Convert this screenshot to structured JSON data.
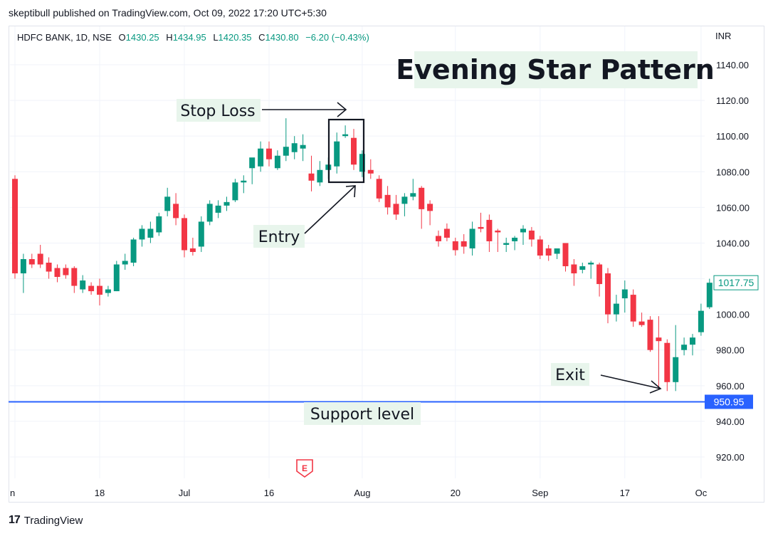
{
  "publisher_line": "skeptibull published on TradingView.com, Oct 09, 2022 17:20 UTC+5:30",
  "legend": {
    "symbol": "HDFC BANK, 1D, NSE",
    "open_label": "O",
    "open": "1430.25",
    "high_label": "H",
    "high": "1434.95",
    "low_label": "L",
    "low": "1420.35",
    "close_label": "C",
    "close": "1430.80",
    "change": "−6.20 (−0.43%)"
  },
  "currency": "INR",
  "footer": {
    "brand": "TradingView",
    "logo_glyph": "17"
  },
  "earnings_marker": "E",
  "colors": {
    "up": "#089981",
    "down": "#f23645",
    "support": "#2962ff",
    "grid": "#f0f3fa"
  },
  "annotations": {
    "title": "Evening Star Pattern",
    "stop_loss": "Stop Loss",
    "entry": "Entry",
    "exit": "Exit",
    "support": "Support level"
  },
  "chart_data": {
    "type": "candlestick",
    "title": "Evening Star Pattern",
    "ylim": [
      910,
      1160
    ],
    "y_ticks": [
      920,
      940,
      960,
      980,
      1000,
      1020,
      1040,
      1060,
      1080,
      1100,
      1120,
      1140
    ],
    "y_tick_labels": [
      "920.00",
      "940.00",
      "960.00",
      "980.00",
      "1000.00",
      "1020.00",
      "1040.00",
      "1060.00",
      "1080.00",
      "1100.00",
      "1120.00",
      "1140.00"
    ],
    "x_tick_labels": [
      {
        "label": "n",
        "index": 0
      },
      {
        "label": "18",
        "index": 10
      },
      {
        "label": "Jul",
        "index": 20
      },
      {
        "label": "16",
        "index": 30
      },
      {
        "label": "Aug",
        "index": 41
      },
      {
        "label": "20",
        "index": 52
      },
      {
        "label": "Sep",
        "index": 62
      },
      {
        "label": "17",
        "index": 72
      },
      {
        "label": "Oc",
        "index": 81
      }
    ],
    "support_level": 950.95,
    "last_price": 1017.75,
    "last_price_label": "1017.75",
    "support_label": "950.95",
    "candles": [
      {
        "o": 1076,
        "h": 1078,
        "l": 1020,
        "c": 1023
      },
      {
        "o": 1023,
        "h": 1034,
        "l": 1012,
        "c": 1031
      },
      {
        "o": 1031,
        "h": 1034,
        "l": 1026,
        "c": 1028
      },
      {
        "o": 1034,
        "h": 1039,
        "l": 1026,
        "c": 1028
      },
      {
        "o": 1029,
        "h": 1032,
        "l": 1020,
        "c": 1024
      },
      {
        "o": 1026,
        "h": 1028,
        "l": 1018,
        "c": 1021
      },
      {
        "o": 1026,
        "h": 1028,
        "l": 1020,
        "c": 1022
      },
      {
        "o": 1026,
        "h": 1027,
        "l": 1012,
        "c": 1016
      },
      {
        "o": 1014,
        "h": 1022,
        "l": 1012,
        "c": 1019
      },
      {
        "o": 1016,
        "h": 1018,
        "l": 1011,
        "c": 1013
      },
      {
        "o": 1016,
        "h": 1020,
        "l": 1005,
        "c": 1011
      },
      {
        "o": 1012,
        "h": 1016,
        "l": 1010,
        "c": 1014
      },
      {
        "o": 1013,
        "h": 1030,
        "l": 1013,
        "c": 1028
      },
      {
        "o": 1028,
        "h": 1034,
        "l": 1025,
        "c": 1030
      },
      {
        "o": 1029,
        "h": 1043,
        "l": 1027,
        "c": 1042
      },
      {
        "o": 1042,
        "h": 1050,
        "l": 1038,
        "c": 1048
      },
      {
        "o": 1043,
        "h": 1052,
        "l": 1040,
        "c": 1048
      },
      {
        "o": 1046,
        "h": 1057,
        "l": 1044,
        "c": 1055
      },
      {
        "o": 1058,
        "h": 1071,
        "l": 1055,
        "c": 1066
      },
      {
        "o": 1062,
        "h": 1068,
        "l": 1050,
        "c": 1054
      },
      {
        "o": 1054,
        "h": 1056,
        "l": 1032,
        "c": 1036
      },
      {
        "o": 1037,
        "h": 1043,
        "l": 1033,
        "c": 1035
      },
      {
        "o": 1038,
        "h": 1055,
        "l": 1035,
        "c": 1052
      },
      {
        "o": 1052,
        "h": 1064,
        "l": 1050,
        "c": 1062
      },
      {
        "o": 1057,
        "h": 1064,
        "l": 1054,
        "c": 1061
      },
      {
        "o": 1061,
        "h": 1066,
        "l": 1058,
        "c": 1063
      },
      {
        "o": 1064,
        "h": 1076,
        "l": 1063,
        "c": 1074
      },
      {
        "o": 1074,
        "h": 1078,
        "l": 1068,
        "c": 1075
      },
      {
        "o": 1082,
        "h": 1087,
        "l": 1073,
        "c": 1088
      },
      {
        "o": 1083,
        "h": 1097,
        "l": 1080,
        "c": 1093
      },
      {
        "o": 1093,
        "h": 1097,
        "l": 1083,
        "c": 1087
      },
      {
        "o": 1082,
        "h": 1092,
        "l": 1081,
        "c": 1089
      },
      {
        "o": 1089,
        "h": 1110,
        "l": 1086,
        "c": 1094
      },
      {
        "o": 1091,
        "h": 1100,
        "l": 1087,
        "c": 1096
      },
      {
        "o": 1093,
        "h": 1101,
        "l": 1086,
        "c": 1095
      },
      {
        "o": 1079,
        "h": 1089,
        "l": 1069,
        "c": 1075
      },
      {
        "o": 1074,
        "h": 1086,
        "l": 1072,
        "c": 1081
      },
      {
        "o": 1081,
        "h": 1088,
        "l": 1076,
        "c": 1084
      },
      {
        "o": 1083,
        "h": 1102,
        "l": 1079,
        "c": 1097
      },
      {
        "o": 1100,
        "h": 1106,
        "l": 1099,
        "c": 1101
      },
      {
        "o": 1099,
        "h": 1104,
        "l": 1081,
        "c": 1084
      },
      {
        "o": 1080,
        "h": 1092,
        "l": 1077,
        "c": 1090
      },
      {
        "o": 1081,
        "h": 1087,
        "l": 1076,
        "c": 1079
      },
      {
        "o": 1076,
        "h": 1078,
        "l": 1063,
        "c": 1065
      },
      {
        "o": 1067,
        "h": 1072,
        "l": 1056,
        "c": 1060
      },
      {
        "o": 1062,
        "h": 1067,
        "l": 1053,
        "c": 1056
      },
      {
        "o": 1062,
        "h": 1068,
        "l": 1055,
        "c": 1066
      },
      {
        "o": 1066,
        "h": 1076,
        "l": 1064,
        "c": 1068
      },
      {
        "o": 1071,
        "h": 1072,
        "l": 1048,
        "c": 1059
      },
      {
        "o": 1062,
        "h": 1064,
        "l": 1050,
        "c": 1058
      },
      {
        "o": 1044,
        "h": 1047,
        "l": 1038,
        "c": 1041
      },
      {
        "o": 1048,
        "h": 1051,
        "l": 1041,
        "c": 1043
      },
      {
        "o": 1041,
        "h": 1043,
        "l": 1033,
        "c": 1036
      },
      {
        "o": 1041,
        "h": 1045,
        "l": 1034,
        "c": 1038
      },
      {
        "o": 1037,
        "h": 1052,
        "l": 1033,
        "c": 1048
      },
      {
        "o": 1049,
        "h": 1057,
        "l": 1046,
        "c": 1048
      },
      {
        "o": 1053,
        "h": 1056,
        "l": 1035,
        "c": 1041
      },
      {
        "o": 1047,
        "h": 1048,
        "l": 1035,
        "c": 1046
      },
      {
        "o": 1039,
        "h": 1043,
        "l": 1035,
        "c": 1040
      },
      {
        "o": 1041,
        "h": 1044,
        "l": 1036,
        "c": 1043
      },
      {
        "o": 1046,
        "h": 1050,
        "l": 1039,
        "c": 1048
      },
      {
        "o": 1047,
        "h": 1049,
        "l": 1038,
        "c": 1042
      },
      {
        "o": 1042,
        "h": 1044,
        "l": 1031,
        "c": 1033
      },
      {
        "o": 1037,
        "h": 1039,
        "l": 1030,
        "c": 1033
      },
      {
        "o": 1034,
        "h": 1037,
        "l": 1031,
        "c": 1037
      },
      {
        "o": 1040,
        "h": 1040,
        "l": 1024,
        "c": 1027
      },
      {
        "o": 1028,
        "h": 1031,
        "l": 1016,
        "c": 1023
      },
      {
        "o": 1025,
        "h": 1029,
        "l": 1023,
        "c": 1027
      },
      {
        "o": 1028,
        "h": 1030,
        "l": 1020,
        "c": 1029
      },
      {
        "o": 1028,
        "h": 1029,
        "l": 1010,
        "c": 1017
      },
      {
        "o": 1023,
        "h": 1026,
        "l": 995,
        "c": 1000
      },
      {
        "o": 1000,
        "h": 1011,
        "l": 996,
        "c": 1006
      },
      {
        "o": 1009,
        "h": 1019,
        "l": 1001,
        "c": 1014
      },
      {
        "o": 1011,
        "h": 1014,
        "l": 993,
        "c": 996
      },
      {
        "o": 996,
        "h": 1001,
        "l": 993,
        "c": 994
      },
      {
        "o": 997,
        "h": 999,
        "l": 979,
        "c": 980
      },
      {
        "o": 987,
        "h": 999,
        "l": 958,
        "c": 985
      },
      {
        "o": 984,
        "h": 986,
        "l": 957,
        "c": 962
      },
      {
        "o": 962,
        "h": 994,
        "l": 957,
        "c": 976
      },
      {
        "o": 980,
        "h": 987,
        "l": 977,
        "c": 983
      },
      {
        "o": 983,
        "h": 989,
        "l": 977,
        "c": 987
      },
      {
        "o": 990,
        "h": 1006,
        "l": 988,
        "c": 1002
      },
      {
        "o": 1004,
        "h": 1020,
        "l": 1003,
        "c": 1017.75
      }
    ]
  }
}
